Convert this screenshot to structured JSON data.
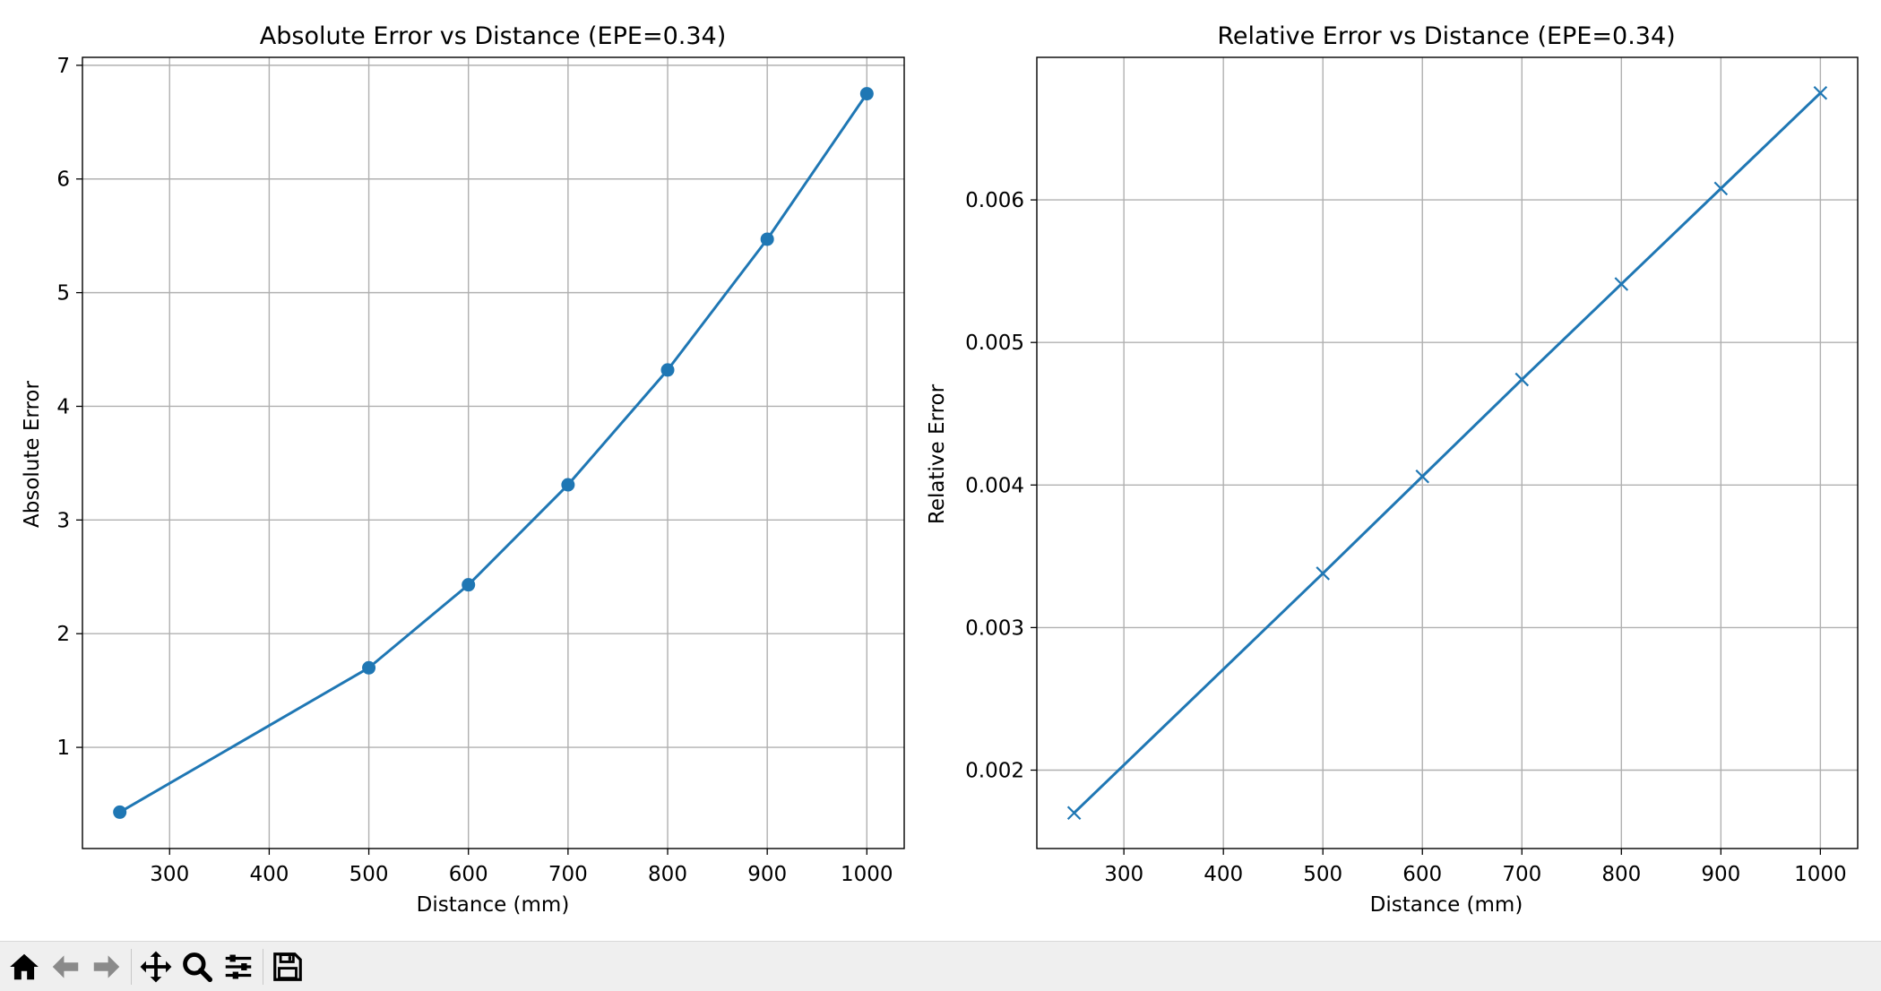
{
  "chart_data": [
    {
      "type": "line",
      "title": "Absolute Error vs Distance (EPE=0.34)",
      "xlabel": "Distance (mm)",
      "ylabel": "Absolute Error",
      "x": [
        250,
        500,
        600,
        700,
        800,
        900,
        1000
      ],
      "series": [
        {
          "values": [
            0.43,
            1.7,
            2.43,
            3.31,
            4.32,
            5.47,
            6.75
          ],
          "marker": "circle",
          "color": "#1f77b4"
        }
      ],
      "xlim": [
        212.5,
        1037.5
      ],
      "ylim": [
        0.11,
        7.07
      ],
      "xticks": [
        300,
        400,
        500,
        600,
        700,
        800,
        900,
        1000
      ],
      "xtick_labels": [
        "300",
        "400",
        "500",
        "600",
        "700",
        "800",
        "900",
        "1000"
      ],
      "yticks": [
        1,
        2,
        3,
        4,
        5,
        6,
        7
      ],
      "ytick_labels": [
        "1",
        "2",
        "3",
        "4",
        "5",
        "6",
        "7"
      ],
      "grid": true
    },
    {
      "type": "line",
      "title": "Relative Error vs Distance (EPE=0.34)",
      "xlabel": "Distance (mm)",
      "ylabel": "Relative Error",
      "x": [
        250,
        500,
        600,
        700,
        800,
        900,
        1000
      ],
      "series": [
        {
          "values": [
            0.0017,
            0.00338,
            0.00406,
            0.00474,
            0.00541,
            0.00608,
            0.00675
          ],
          "marker": "x",
          "color": "#1f77b4"
        }
      ],
      "xlim": [
        212.5,
        1037.5
      ],
      "ylim": [
        0.00145,
        0.007
      ],
      "xticks": [
        300,
        400,
        500,
        600,
        700,
        800,
        900,
        1000
      ],
      "xtick_labels": [
        "300",
        "400",
        "500",
        "600",
        "700",
        "800",
        "900",
        "1000"
      ],
      "yticks": [
        0.002,
        0.003,
        0.004,
        0.005,
        0.006
      ],
      "ytick_labels": [
        "0.002",
        "0.003",
        "0.004",
        "0.005",
        "0.006"
      ],
      "grid": true
    }
  ],
  "toolbar": {
    "buttons": [
      {
        "name": "home-button",
        "icon": "home-icon"
      },
      {
        "name": "back-button",
        "icon": "arrow-left-icon"
      },
      {
        "name": "forward-button",
        "icon": "arrow-right-icon"
      },
      {
        "name": "pan-button",
        "icon": "move-icon"
      },
      {
        "name": "zoom-button",
        "icon": "magnifier-icon"
      },
      {
        "name": "configure-subplots-button",
        "icon": "sliders-icon"
      },
      {
        "name": "save-button",
        "icon": "floppy-disk-icon"
      }
    ]
  }
}
